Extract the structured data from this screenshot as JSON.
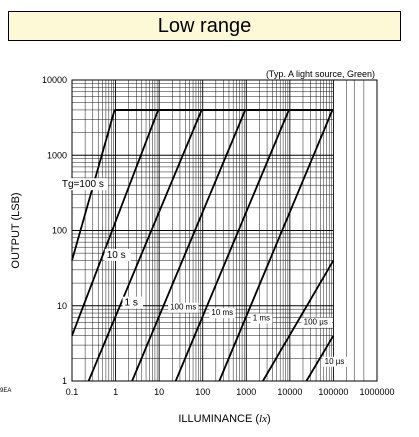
{
  "chart_data": {
    "type": "line",
    "title": "Low range",
    "subtitle": "(Typ. A light source, Green)",
    "xlabel": "ILLUMINANCE (",
    "xlabel_unit": "lx",
    "xlabel_close": ")",
    "ylabel": "OUTPUT (LSB)",
    "x_scale": "log",
    "y_scale": "log",
    "xlim": [
      0.1,
      1000000
    ],
    "ylim": [
      1,
      10000
    ],
    "x_ticks": [
      0.1,
      1,
      10,
      100,
      1000,
      10000,
      100000,
      1000000
    ],
    "x_tick_labels": [
      "0.1",
      "1",
      "10",
      "100",
      "1000",
      "10000",
      "100000",
      "1000000"
    ],
    "y_ticks": [
      1,
      10,
      100,
      1000,
      10000
    ],
    "y_tick_labels": [
      "1",
      "10",
      "100",
      "1000",
      "10000"
    ],
    "grid": true,
    "data_region_x_max": 100000,
    "saturation_level": 4000,
    "series_label_prefix": "Tg=",
    "footnote": "9EA",
    "colors": {
      "line": "#000000",
      "grid": "#000000",
      "banner_fill": "#fdf8d6"
    },
    "series": [
      {
        "name": "100 s",
        "x": [
          0.1,
          0.95
        ],
        "y": [
          40,
          4000
        ]
      },
      {
        "name": "10 s",
        "x": [
          0.1,
          9.5
        ],
        "y": [
          4,
          4000
        ]
      },
      {
        "name": "1 s",
        "x": [
          0.24,
          95
        ],
        "y": [
          1,
          4000
        ]
      },
      {
        "name": "100 ms",
        "x": [
          2.4,
          950
        ],
        "y": [
          1,
          4000
        ]
      },
      {
        "name": "10 ms",
        "x": [
          24,
          9500
        ],
        "y": [
          1,
          4000
        ]
      },
      {
        "name": "1 ms",
        "x": [
          240,
          95000
        ],
        "y": [
          1,
          4000
        ]
      },
      {
        "name": "100 µs",
        "x": [
          2400,
          100000
        ],
        "y": [
          1,
          40
        ]
      },
      {
        "name": "10 µs",
        "x": [
          24000,
          100000
        ],
        "y": [
          1,
          4
        ]
      }
    ],
    "series_labels": [
      {
        "text": "Tg=100 s",
        "series": 0
      },
      {
        "text": "10 s",
        "series": 1
      },
      {
        "text": "1 s",
        "series": 2
      },
      {
        "text": "100 ms",
        "series": 3
      },
      {
        "text": "10 ms",
        "series": 4
      },
      {
        "text": "1 ms",
        "series": 5
      },
      {
        "text": "100 µs",
        "series": 6
      },
      {
        "text": "10 µs",
        "series": 7
      }
    ]
  }
}
